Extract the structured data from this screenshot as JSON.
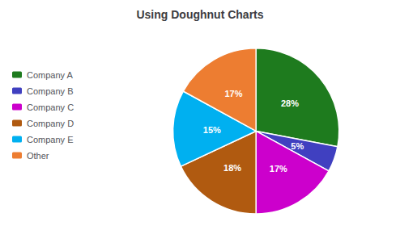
{
  "chart_data": {
    "type": "pie",
    "title": "Using Doughnut Charts",
    "categories": [
      "Company A",
      "Company B",
      "Company C",
      "Company D",
      "Company E",
      "Other"
    ],
    "values": [
      28,
      5,
      17,
      18,
      15,
      17
    ],
    "value_labels": [
      "28%",
      "5%",
      "17%",
      "18%",
      "15%",
      "17%"
    ],
    "colors": [
      "#1e7b1e",
      "#4040c0",
      "#cc00cc",
      "#b05a10",
      "#00b0f0",
      "#ed7d31"
    ],
    "data_labels": true,
    "legend": "left"
  }
}
